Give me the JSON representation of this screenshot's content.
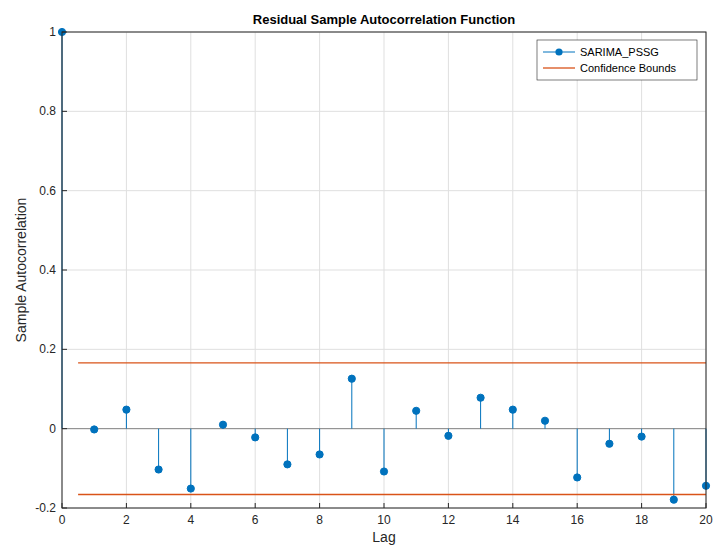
{
  "chart_data": {
    "type": "stem",
    "title": "Residual Sample Autocorrelation Function",
    "x_label": "Lag",
    "y_label": "Sample Autocorrelation",
    "xlim": [
      0,
      20
    ],
    "ylim": [
      -0.2,
      1
    ],
    "xticks": [
      0,
      2,
      4,
      6,
      8,
      10,
      12,
      14,
      16,
      18,
      20
    ],
    "yticks": [
      -0.2,
      0,
      0.2,
      0.4,
      0.6,
      0.8,
      1
    ],
    "grid": true,
    "legend": "top-right",
    "series": [
      {
        "name": "SARIMA_PSSG",
        "type": "stem",
        "color": "#0072bd",
        "marker": "circle",
        "x": [
          0,
          1,
          2,
          3,
          4,
          5,
          6,
          7,
          8,
          9,
          10,
          11,
          12,
          13,
          14,
          15,
          16,
          17,
          18,
          19,
          20
        ],
        "values": [
          1,
          -0.002,
          0.048,
          -0.103,
          -0.151,
          0.01,
          -0.022,
          -0.09,
          -0.065,
          0.126,
          -0.108,
          0.045,
          -0.018,
          0.078,
          0.048,
          0.02,
          -0.123,
          -0.038,
          -0.02,
          -0.179,
          -0.144
        ]
      },
      {
        "name": "Confidence Bounds",
        "type": "line",
        "color": "#d95319",
        "line_style": "solid",
        "x": [
          0.5,
          20
        ],
        "values": [
          0.166,
          0.166
        ],
        "lower_values": [
          -0.166,
          -0.166
        ]
      }
    ]
  }
}
